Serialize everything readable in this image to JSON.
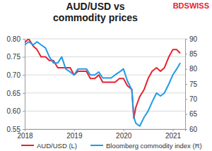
{
  "chart_data": {
    "type": "line",
    "title": [
      "AUD/USD vs",
      "commodity prices"
    ],
    "logo": "BDSWISS",
    "x": [
      2018.0,
      2018.08,
      2018.17,
      2018.25,
      2018.33,
      2018.42,
      2018.5,
      2018.58,
      2018.67,
      2018.75,
      2018.83,
      2018.92,
      2019.0,
      2019.08,
      2019.17,
      2019.25,
      2019.33,
      2019.42,
      2019.5,
      2019.58,
      2019.67,
      2019.75,
      2019.83,
      2019.92,
      2020.0,
      2020.08,
      2020.17,
      2020.21,
      2020.25,
      2020.33,
      2020.42,
      2020.5,
      2020.58,
      2020.67,
      2020.75,
      2020.83,
      2020.92,
      2021.0,
      2021.08,
      2021.15
    ],
    "xlim": [
      2018,
      2021.25
    ],
    "xticks": [
      2018,
      2019,
      2020,
      2021
    ],
    "ylim": [
      0.55,
      0.8
    ],
    "yticks": [
      0.55,
      {
        "value": 0.6,
        "label": "0.60"
      },
      0.65,
      {
        "value": 0.7,
        "label": "0.70"
      },
      0.75,
      {
        "value": 0.8,
        "label": "0.80"
      }
    ],
    "y2lim": [
      60,
      90
    ],
    "y2ticks": [
      60,
      65,
      70,
      75,
      80,
      85,
      90
    ],
    "grid": true,
    "legend": "bottom",
    "series": [
      {
        "name": "AUD/USD (L)",
        "color": "#e8212d",
        "axis": "y",
        "values": [
          0.79,
          0.8,
          0.78,
          0.77,
          0.75,
          0.75,
          0.74,
          0.74,
          0.72,
          0.72,
          0.72,
          0.72,
          0.7,
          0.71,
          0.71,
          0.71,
          0.69,
          0.69,
          0.7,
          0.68,
          0.68,
          0.68,
          0.68,
          0.69,
          0.69,
          0.67,
          0.66,
          0.58,
          0.61,
          0.64,
          0.66,
          0.69,
          0.71,
          0.72,
          0.71,
          0.72,
          0.75,
          0.77,
          0.77,
          0.76
        ]
      },
      {
        "name": "Bloomberg commodity index (R)",
        "color": "#1e9be9",
        "axis": "y2",
        "values": [
          88,
          89,
          88,
          89,
          88,
          87,
          84,
          82,
          82,
          84,
          80,
          79,
          78,
          80,
          80,
          80,
          78,
          78,
          79,
          77,
          77,
          77,
          78,
          79,
          80,
          76,
          73,
          64,
          62,
          61,
          64,
          66,
          69,
          72,
          71,
          72,
          75,
          78,
          80,
          82
        ]
      }
    ]
  }
}
